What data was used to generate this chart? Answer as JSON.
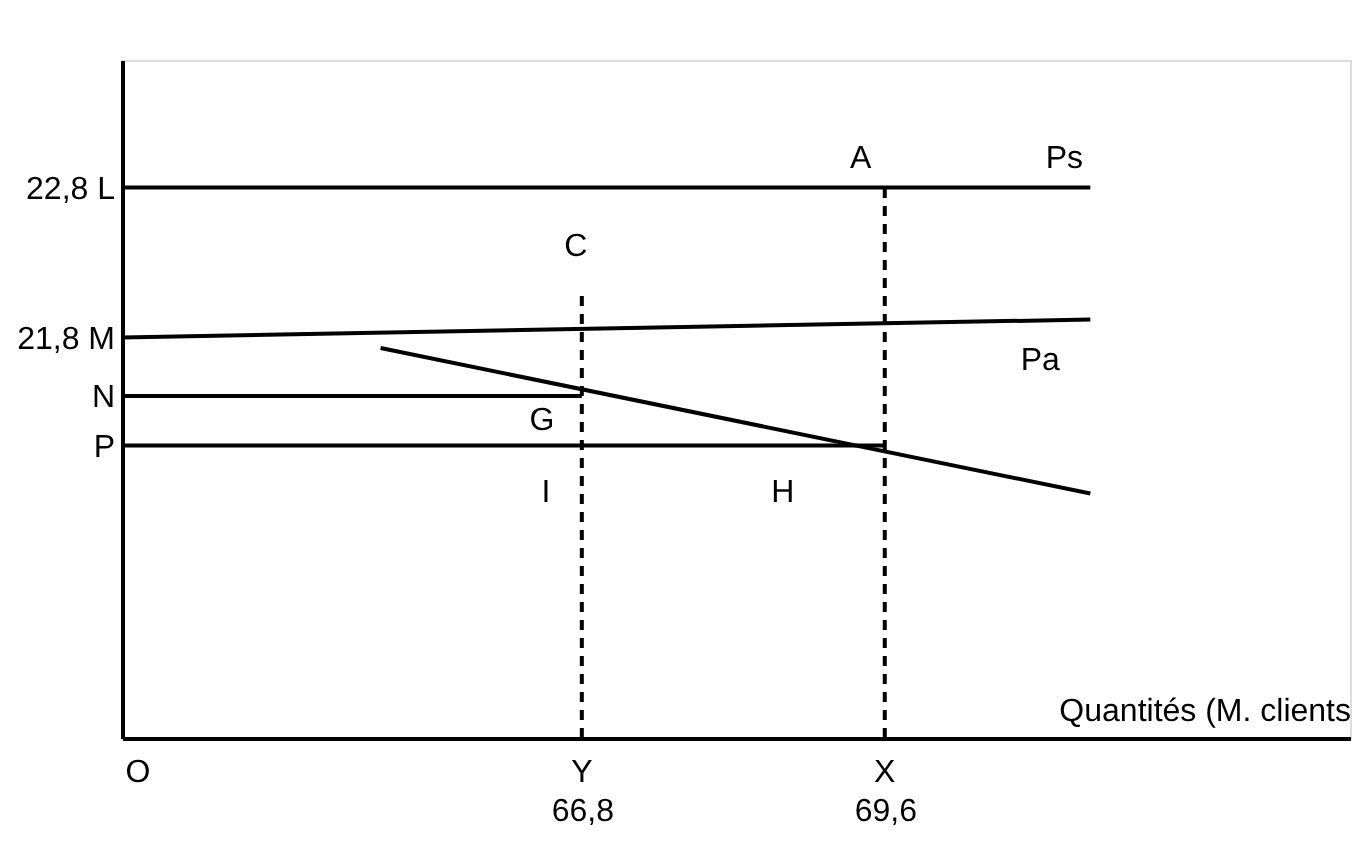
{
  "chart_data": {
    "type": "line",
    "xlabel": "Quantités (M. clients",
    "xlim": [
      62.55,
      73.9
    ],
    "ylim": [
      19.13,
      23.65
    ],
    "xticks": [
      {
        "value": 66.8,
        "label": "66,8"
      },
      {
        "value": 69.6,
        "label": "69,6"
      }
    ],
    "yticks": [
      {
        "value": 22.8,
        "label": "22,8 L"
      },
      {
        "value": 21.8,
        "label": "21,8 M"
      },
      {
        "value": 21.41,
        "label": "N"
      },
      {
        "value": 21.08,
        "label": "P"
      }
    ],
    "grid": false,
    "series": [
      {
        "color": "#000000",
        "line_style": "solid",
        "x": [
          62.55,
          71.5
        ],
        "values": [
          22.8,
          22.8
        ]
      },
      {
        "color": "#000000",
        "line_style": "solid",
        "x": [
          62.55,
          71.5
        ],
        "values": [
          21.8,
          21.92
        ]
      },
      {
        "color": "#000000",
        "line_style": "solid",
        "x": [
          64.94,
          71.5
        ],
        "values": [
          21.73,
          20.76
        ]
      },
      {
        "color": "#000000",
        "line_style": "solid",
        "x": [
          62.55,
          66.8
        ],
        "values": [
          21.41,
          21.41
        ]
      },
      {
        "color": "#000000",
        "line_style": "solid",
        "x": [
          62.55,
          69.6
        ],
        "values": [
          21.08,
          21.08
        ]
      },
      {
        "color": "#000000",
        "line_style": "dashed",
        "x": [
          66.8,
          66.8
        ],
        "values": [
          19.13,
          22.12
        ]
      },
      {
        "color": "#000000",
        "line_style": "dashed",
        "x": [
          69.6,
          69.6
        ],
        "values": [
          19.13,
          22.8
        ]
      }
    ],
    "annotations": [
      {
        "text": "A",
        "x": 69.6,
        "y": 22.8
      },
      {
        "text": "Ps",
        "x": 71.5,
        "y": 22.8
      },
      {
        "text": "C",
        "x": 66.8,
        "y": 22.12
      },
      {
        "text": "Pa",
        "x": 71.5,
        "y": 21.92
      },
      {
        "text": "G",
        "x": 66.8,
        "y": 21.41
      },
      {
        "text": "I",
        "x": 66.8,
        "y": 21.08
      },
      {
        "text": "H",
        "x": 69.6,
        "y": 21.08
      },
      {
        "text": "Y",
        "x": 66.8,
        "y": 19.13
      },
      {
        "text": "X",
        "x": 69.6,
        "y": 19.13
      },
      "O"
    ]
  }
}
